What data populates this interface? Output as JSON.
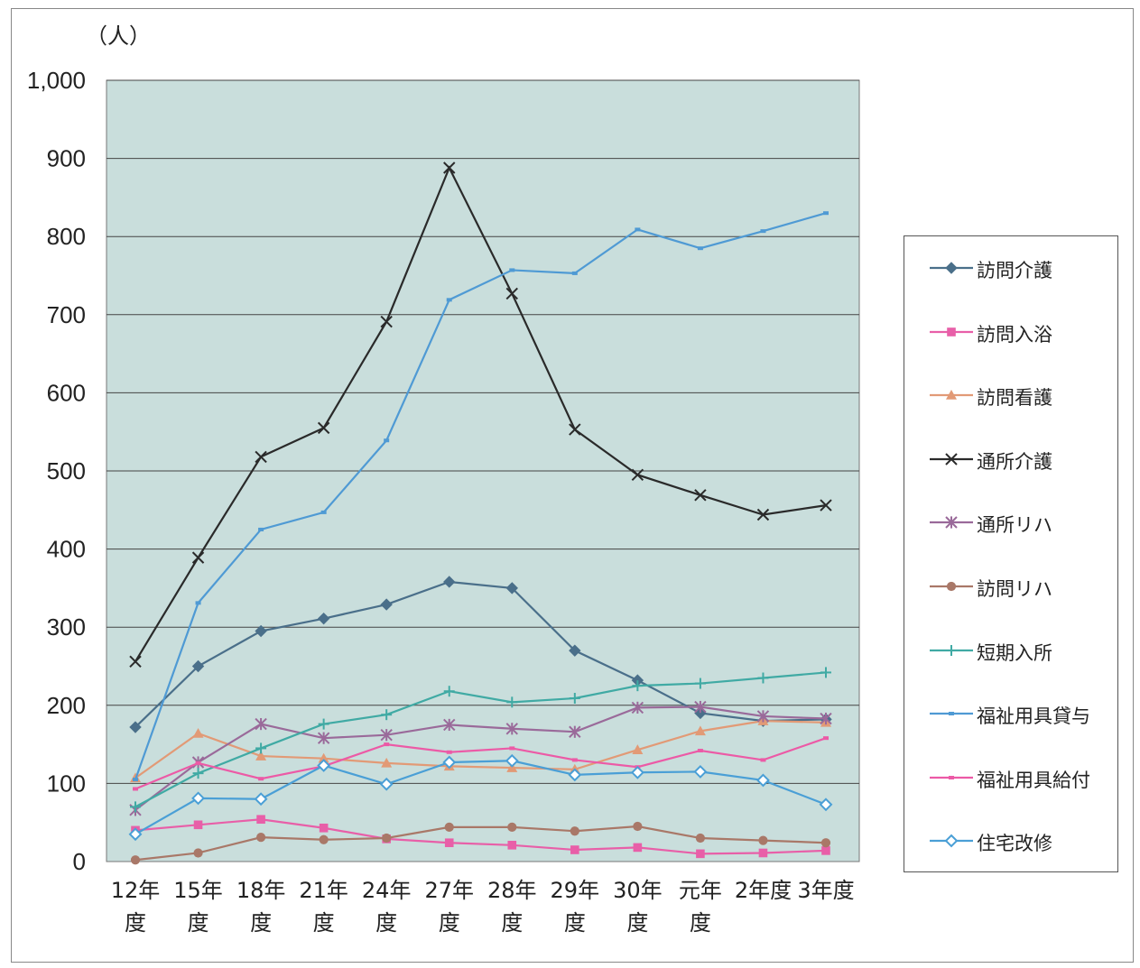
{
  "chart_data": {
    "type": "line",
    "title": "",
    "unit_label": "（人）",
    "xlabel": "",
    "ylabel": "",
    "ylim": [
      0,
      1000
    ],
    "yticks": [
      "0",
      "100",
      "200",
      "300",
      "400",
      "500",
      "600",
      "700",
      "800",
      "900",
      "1,000"
    ],
    "categories": [
      "12年度",
      "15年度",
      "18年度",
      "21年度",
      "24年度",
      "27年度",
      "28年度",
      "29年度",
      "30年度",
      "元年度",
      "2年度",
      "3年度"
    ],
    "category_labels": [
      {
        "line1": "12年",
        "line2": "度"
      },
      {
        "line1": "15年",
        "line2": "度"
      },
      {
        "line1": "18年",
        "line2": "度"
      },
      {
        "line1": "21年",
        "line2": "度"
      },
      {
        "line1": "24年",
        "line2": "度"
      },
      {
        "line1": "27年",
        "line2": "度"
      },
      {
        "line1": "28年",
        "line2": "度"
      },
      {
        "line1": "29年",
        "line2": "度"
      },
      {
        "line1": "30年",
        "line2": "度"
      },
      {
        "line1": "元年",
        "line2": "度"
      },
      {
        "line1": "2年度",
        "line2": ""
      },
      {
        "line1": "3年度",
        "line2": ""
      }
    ],
    "grid": "horizontal",
    "plot_background": "#c9dedc",
    "legend_position": "right",
    "series": [
      {
        "name": "訪問介護",
        "color": "#4a6f8a",
        "marker": "diamond",
        "values": [
          172,
          250,
          295,
          311,
          329,
          358,
          350,
          270,
          232,
          190,
          180,
          182
        ]
      },
      {
        "name": "訪問入浴",
        "color": "#e85fa8",
        "marker": "square",
        "values": [
          40,
          47,
          54,
          43,
          29,
          24,
          21,
          15,
          18,
          10,
          11,
          14
        ]
      },
      {
        "name": "訪問看護",
        "color": "#e29a76",
        "marker": "triangle",
        "values": [
          107,
          164,
          135,
          132,
          126,
          122,
          120,
          118,
          143,
          167,
          180,
          178
        ]
      },
      {
        "name": "通所介護",
        "color": "#2a2a2a",
        "marker": "x",
        "values": [
          256,
          389,
          518,
          555,
          691,
          888,
          727,
          553,
          495,
          469,
          444,
          456
        ]
      },
      {
        "name": "通所リハ",
        "color": "#9a6a9a",
        "marker": "star",
        "values": [
          66,
          127,
          176,
          158,
          162,
          175,
          170,
          166,
          197,
          198,
          186,
          183
        ]
      },
      {
        "name": "訪問リハ",
        "color": "#a97868",
        "marker": "circle",
        "values": [
          2,
          11,
          31,
          28,
          30,
          44,
          44,
          39,
          45,
          30,
          27,
          24
        ]
      },
      {
        "name": "短期入所",
        "color": "#40aaa4",
        "marker": "plus",
        "values": [
          70,
          113,
          145,
          176,
          188,
          218,
          204,
          209,
          225,
          228,
          235,
          242
        ]
      },
      {
        "name": "福祉用具貸与",
        "color": "#4f9ad4",
        "marker": "dash",
        "values": [
          105,
          331,
          425,
          447,
          539,
          719,
          757,
          753,
          809,
          785,
          807,
          830
        ]
      },
      {
        "name": "福祉用具給付",
        "color": "#ec5aa6",
        "marker": "dash",
        "values": [
          93,
          126,
          106,
          122,
          150,
          140,
          145,
          130,
          121,
          142,
          130,
          158
        ]
      },
      {
        "name": "住宅改修",
        "color": "#4a9fd6",
        "marker": "hollow-diamond",
        "values": [
          35,
          81,
          80,
          123,
          99,
          127,
          129,
          111,
          114,
          115,
          104,
          73
        ]
      }
    ]
  }
}
